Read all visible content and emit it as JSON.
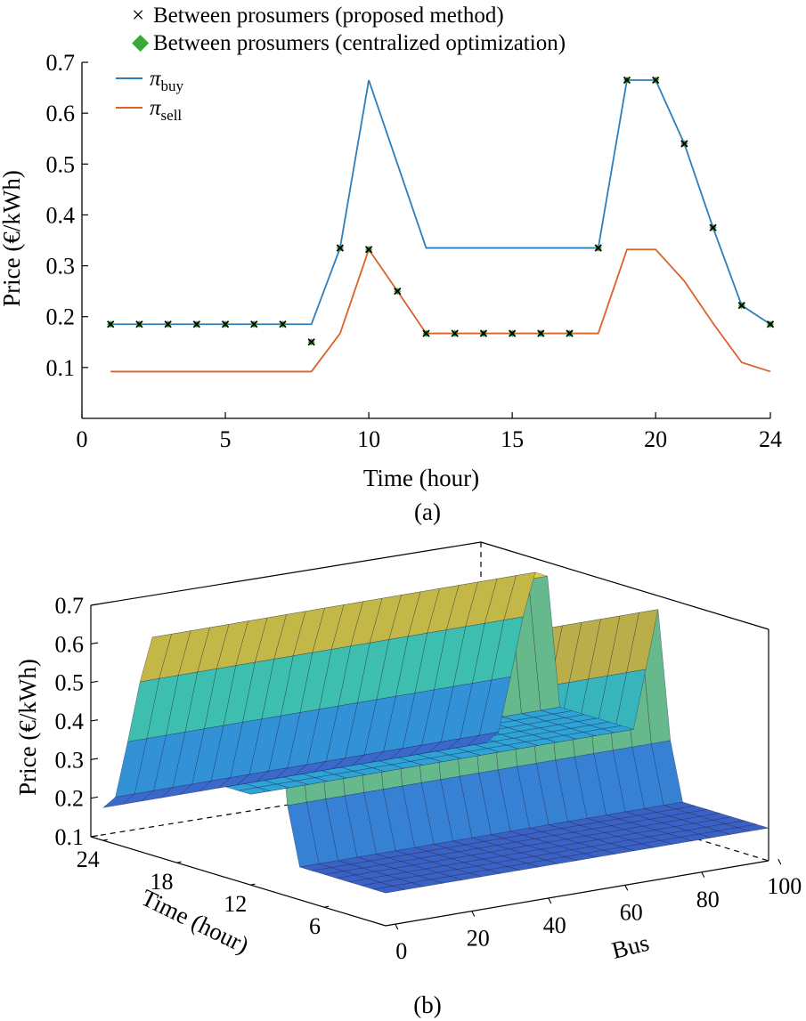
{
  "chart_data": [
    {
      "type": "line",
      "panel_label": "(a)",
      "xlabel": "Time (hour)",
      "ylabel": "Price (€/kWh)",
      "xlim": [
        0,
        24
      ],
      "ylim": [
        0,
        0.7
      ],
      "xticks": [
        "0",
        "5",
        "10",
        "15",
        "20",
        "24"
      ],
      "yticks": [
        "0.1",
        "0.2",
        "0.3",
        "0.4",
        "0.5",
        "0.6",
        "0.7"
      ],
      "x": [
        1,
        2,
        3,
        4,
        5,
        6,
        7,
        8,
        9,
        10,
        11,
        12,
        13,
        14,
        15,
        16,
        17,
        18,
        19,
        20,
        21,
        22,
        23,
        24
      ],
      "series": [
        {
          "name": "π",
          "name_sub": "buy",
          "color": "#2e7ebc",
          "values": [
            0.185,
            0.185,
            0.185,
            0.185,
            0.185,
            0.185,
            0.185,
            0.185,
            0.335,
            0.665,
            0.5,
            0.335,
            0.335,
            0.335,
            0.335,
            0.335,
            0.335,
            0.335,
            0.665,
            0.665,
            0.54,
            0.375,
            0.222,
            0.185
          ]
        },
        {
          "name": "π",
          "name_sub": "sell",
          "color": "#d9632b",
          "values": [
            0.092,
            0.092,
            0.092,
            0.092,
            0.092,
            0.092,
            0.092,
            0.092,
            0.167,
            0.332,
            0.25,
            0.167,
            0.167,
            0.167,
            0.167,
            0.167,
            0.167,
            0.167,
            0.332,
            0.332,
            0.27,
            0.187,
            0.11,
            0.092
          ]
        }
      ],
      "markers": [
        {
          "name": "Between prosumers (proposed method)",
          "symbol": "×",
          "color": "#000000",
          "x": [
            1,
            2,
            3,
            4,
            5,
            6,
            7,
            8,
            9,
            10,
            11,
            12,
            13,
            14,
            15,
            16,
            17,
            18,
            19,
            20,
            21,
            22,
            23,
            24
          ],
          "y": [
            0.185,
            0.185,
            0.185,
            0.185,
            0.185,
            0.185,
            0.185,
            0.15,
            0.335,
            0.332,
            0.25,
            0.167,
            0.167,
            0.167,
            0.167,
            0.167,
            0.167,
            0.335,
            0.665,
            0.665,
            0.54,
            0.375,
            0.222,
            0.185
          ]
        },
        {
          "name": "Between prosumers (centralized optimization)",
          "symbol": "◆",
          "color": "#3aa83a",
          "x": [
            1,
            2,
            3,
            4,
            5,
            6,
            7,
            8,
            9,
            10,
            11,
            12,
            13,
            14,
            15,
            16,
            17,
            18,
            19,
            20,
            21,
            22,
            23,
            24
          ],
          "y": [
            0.185,
            0.185,
            0.185,
            0.185,
            0.185,
            0.185,
            0.185,
            0.15,
            0.335,
            0.332,
            0.25,
            0.167,
            0.167,
            0.167,
            0.167,
            0.167,
            0.167,
            0.335,
            0.665,
            0.665,
            0.54,
            0.375,
            0.222,
            0.185
          ]
        }
      ],
      "legend": "top-left"
    },
    {
      "type": "surface",
      "panel_label": "(b)",
      "xlabel": "Time (hour)",
      "ylabel": "Bus",
      "zlabel": "Price (€/kWh)",
      "zticks": [
        "0.1",
        "0.2",
        "0.3",
        "0.4",
        "0.5",
        "0.6",
        "0.7"
      ],
      "time_ticks": [
        "24",
        "18",
        "12",
        "6"
      ],
      "bus_ticks": [
        "0",
        "20",
        "40",
        "60",
        "80",
        "100"
      ],
      "zlim": [
        0.1,
        0.7
      ],
      "time": [
        1,
        2,
        3,
        4,
        5,
        6,
        7,
        8,
        9,
        10,
        11,
        12,
        13,
        14,
        15,
        16,
        17,
        18,
        19,
        20,
        21,
        22,
        23,
        24
      ],
      "price_over_time": [
        0.185,
        0.185,
        0.185,
        0.185,
        0.185,
        0.185,
        0.185,
        0.185,
        0.335,
        0.665,
        0.5,
        0.335,
        0.335,
        0.335,
        0.335,
        0.335,
        0.335,
        0.335,
        0.665,
        0.665,
        0.54,
        0.375,
        0.222,
        0.185
      ],
      "bus_range": [
        0,
        100
      ],
      "colormap": [
        "#3b3fa2",
        "#3a6fd2",
        "#2fa4d6",
        "#3dbfae",
        "#b9ad4a",
        "#e8e03a"
      ]
    }
  ]
}
